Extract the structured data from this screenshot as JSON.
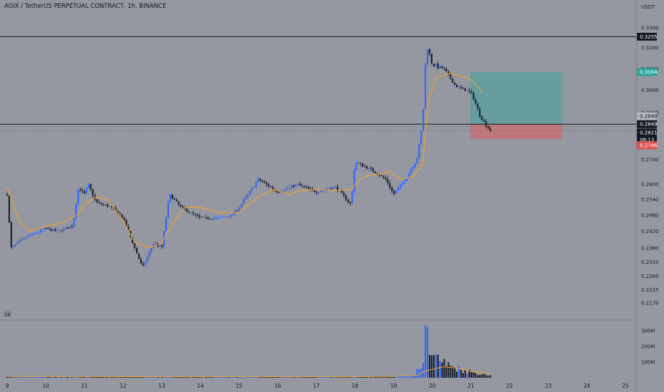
{
  "header": {
    "symbol_title": "AGIX / TetherUS PERPETUAL CONTRACT, 1h, BINANCE",
    "currency_label": "USDT",
    "volume_indicator": "10"
  },
  "colors": {
    "background": "#9598a1",
    "up_candle": "#2962ff",
    "down_candle": "#131722",
    "ma_line": "#f0a030",
    "target_zone": "#26a69a",
    "stop_zone": "#ef5350",
    "label_dark": "#131722",
    "label_green": "#26a69a",
    "label_red": "#e05050"
  },
  "chart_data": {
    "type": "candlestick",
    "symbol": "AGIX / TetherUS PERPETUAL CONTRACT, 1h, BINANCE",
    "ylabel": "USDT",
    "yscale": "log",
    "ylim": [
      0.214,
      0.339
    ],
    "y_ticks": [
      "0.3300",
      "0.3200",
      "0.3100",
      "0.3000",
      "0.2900",
      "0.2700",
      "0.2600",
      "0.2540",
      "0.2480",
      "0.2420",
      "0.2360",
      "0.2310",
      "0.2260",
      "0.2215",
      "0.2170"
    ],
    "x_ticks": [
      "9",
      "10",
      "11",
      "12",
      "13",
      "14",
      "15",
      "16",
      "17",
      "18",
      "19",
      "20",
      "21",
      "22",
      "23",
      "24",
      "25"
    ],
    "grid": false,
    "horizontal_lines": [
      0.3255,
      0.2849
    ],
    "price_labels": {
      "high_line": "0.3255",
      "target": "0.3084",
      "last_line": "0.2849",
      "entry": "0.2849",
      "current_price": "0.2821",
      "countdown": "08:13",
      "stop": "0.2786"
    },
    "position_box": {
      "entry": 0.2849,
      "target": 0.3084,
      "stop": 0.2786,
      "x_start": "21",
      "x_end": "23"
    },
    "close_anchors": [
      [
        "9",
        0.256
      ],
      [
        "9.1",
        0.236
      ],
      [
        "9.5",
        0.24
      ],
      [
        "10",
        0.243
      ],
      [
        "10.3",
        0.242
      ],
      [
        "10.7",
        0.244
      ],
      [
        "10.85",
        0.259
      ],
      [
        "11",
        0.256
      ],
      [
        "11.1",
        0.26
      ],
      [
        "11.3",
        0.253
      ],
      [
        "11.7",
        0.251
      ],
      [
        "12",
        0.247
      ],
      [
        "12.3",
        0.236
      ],
      [
        "12.5",
        0.229
      ],
      [
        "12.8",
        0.238
      ],
      [
        "13",
        0.236
      ],
      [
        "13.2",
        0.256
      ],
      [
        "13.5",
        0.251
      ],
      [
        "14",
        0.247
      ],
      [
        "14.5",
        0.247
      ],
      [
        "14.8",
        0.248
      ],
      [
        "15",
        0.251
      ],
      [
        "15.5",
        0.262
      ],
      [
        "16",
        0.257
      ],
      [
        "16.5",
        0.26
      ],
      [
        "17",
        0.257
      ],
      [
        "17.5",
        0.259
      ],
      [
        "17.9",
        0.252
      ],
      [
        "18",
        0.269
      ],
      [
        "18.4",
        0.266
      ],
      [
        "18.8",
        0.262
      ],
      [
        "19",
        0.256
      ],
      [
        "19.3",
        0.262
      ],
      [
        "19.6",
        0.27
      ],
      [
        "19.75",
        0.285
      ],
      [
        "19.85",
        0.322
      ],
      [
        "20",
        0.312
      ],
      [
        "20.3",
        0.31
      ],
      [
        "20.6",
        0.302
      ],
      [
        "21",
        0.299
      ],
      [
        "21.1",
        0.295
      ],
      [
        "21.25",
        0.288
      ],
      [
        "21.5",
        0.2821
      ]
    ],
    "ma_anchors": [
      [
        "9",
        0.259
      ],
      [
        "9.3",
        0.246
      ],
      [
        "9.6",
        0.242
      ],
      [
        "10",
        0.244
      ],
      [
        "10.4",
        0.245
      ],
      [
        "10.8",
        0.248
      ],
      [
        "11",
        0.252
      ],
      [
        "11.3",
        0.255
      ],
      [
        "11.6",
        0.254
      ],
      [
        "12",
        0.246
      ],
      [
        "12.3",
        0.238
      ],
      [
        "12.7",
        0.236
      ],
      [
        "13",
        0.238
      ],
      [
        "13.3",
        0.245
      ],
      [
        "13.6",
        0.251
      ],
      [
        "14",
        0.251
      ],
      [
        "14.5",
        0.249
      ],
      [
        "15",
        0.249
      ],
      [
        "15.5",
        0.255
      ],
      [
        "15.9",
        0.258
      ],
      [
        "16.3",
        0.256
      ],
      [
        "16.6",
        0.2575
      ],
      [
        "17",
        0.258
      ],
      [
        "17.5",
        0.2575
      ],
      [
        "17.9",
        0.258
      ],
      [
        "18.2",
        0.263
      ],
      [
        "18.6",
        0.264
      ],
      [
        "18.9",
        0.265
      ],
      [
        "19.2",
        0.262
      ],
      [
        "19.5",
        0.263
      ],
      [
        "19.75",
        0.268
      ],
      [
        "19.9",
        0.295
      ],
      [
        "20.1",
        0.306
      ],
      [
        "20.5",
        0.308
      ],
      [
        "21",
        0.305
      ],
      [
        "21.3",
        0.299
      ]
    ],
    "volume": {
      "y_ticks": [
        "300M",
        "200M",
        "100M"
      ],
      "ylim": [
        0,
        340000000
      ],
      "anchors": [
        [
          "9",
          8000000
        ],
        [
          "10",
          6000000
        ],
        [
          "11",
          7000000
        ],
        [
          "12",
          6000000
        ],
        [
          "13",
          6000000
        ],
        [
          "14",
          6000000
        ],
        [
          "15",
          7000000
        ],
        [
          "16",
          6000000
        ],
        [
          "17",
          6000000
        ],
        [
          "18",
          7000000
        ],
        [
          "19",
          8000000
        ],
        [
          "19.5",
          12000000
        ],
        [
          "19.75",
          80000000
        ],
        [
          "19.85",
          310000000
        ],
        [
          "20",
          150000000
        ],
        [
          "20.4",
          80000000
        ],
        [
          "20.8",
          50000000
        ],
        [
          "21.2",
          25000000
        ],
        [
          "21.5",
          15000000
        ]
      ],
      "ma_anchors": [
        [
          "9",
          8000000
        ],
        [
          "12",
          7000000
        ],
        [
          "15",
          7000000
        ],
        [
          "18",
          7000000
        ],
        [
          "19",
          8000000
        ],
        [
          "19.6",
          15000000
        ],
        [
          "19.85",
          45000000
        ],
        [
          "20.3",
          70000000
        ],
        [
          "20.7",
          60000000
        ],
        [
          "21",
          40000000
        ],
        [
          "21.5",
          25000000
        ]
      ]
    }
  }
}
